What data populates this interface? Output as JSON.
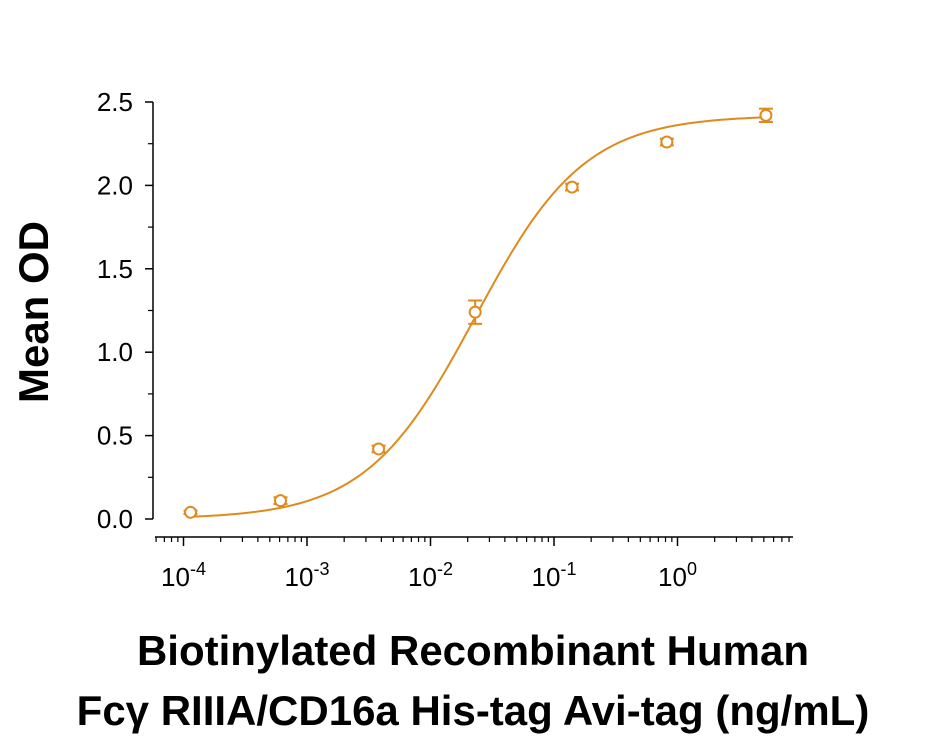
{
  "chart_data": {
    "type": "scatter",
    "title": "",
    "ylabel": "Mean OD",
    "xlabel_line1": "Biotinylated Recombinant Human",
    "xlabel_line2": "Fcγ RIIIA/CD16a His-tag Avi-tag (ng/mL)",
    "x_scale": "log10",
    "xlim": [
      7e-05,
      7
    ],
    "ylim": [
      0,
      2.5
    ],
    "y_ticks": [
      {
        "value": 0.0,
        "label": "0.0"
      },
      {
        "value": 0.5,
        "label": "0.5"
      },
      {
        "value": 1.0,
        "label": "1.0"
      },
      {
        "value": 1.5,
        "label": "1.5"
      },
      {
        "value": 2.0,
        "label": "2.0"
      },
      {
        "value": 2.5,
        "label": "2.5"
      }
    ],
    "x_ticks": [
      {
        "value": 0.0001,
        "base": "10",
        "exp": "-4"
      },
      {
        "value": 0.001,
        "base": "10",
        "exp": "-3"
      },
      {
        "value": 0.01,
        "base": "10",
        "exp": "-2"
      },
      {
        "value": 0.1,
        "base": "10",
        "exp": "-1"
      },
      {
        "value": 1,
        "base": "10",
        "exp": "0"
      }
    ],
    "series": [
      {
        "color": "#E08A1E",
        "marker": "open-circle",
        "points": [
          {
            "x": 0.000114,
            "y": 0.04,
            "err": 0.01
          },
          {
            "x": 0.00061,
            "y": 0.11,
            "err": 0.02
          },
          {
            "x": 0.0038,
            "y": 0.42,
            "err": 0.02
          },
          {
            "x": 0.023,
            "y": 1.24,
            "err": 0.07
          },
          {
            "x": 0.14,
            "y": 1.99,
            "err": 0.02
          },
          {
            "x": 0.82,
            "y": 2.26,
            "err": 0.02
          },
          {
            "x": 5.2,
            "y": 2.42,
            "err": 0.04
          }
        ]
      }
    ],
    "fit": {
      "type": "4PL",
      "bottom": 0.0,
      "top": 2.42,
      "ec50": 0.023,
      "hill": 0.98
    },
    "grid": false,
    "legend": "none"
  }
}
